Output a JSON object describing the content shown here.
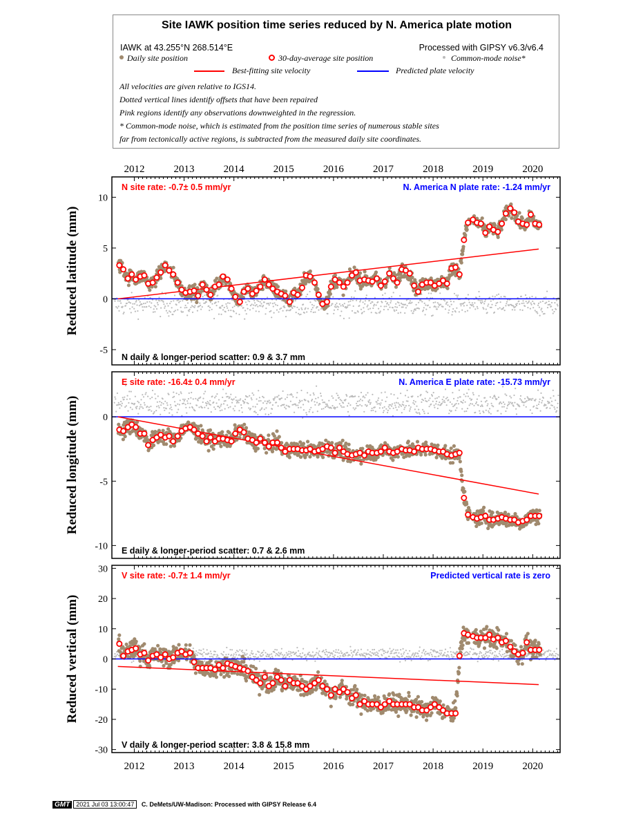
{
  "legend": {
    "title": "Site IAWK position time series reduced by N. America plate motion",
    "site_location": "IAWK at 43.255°N 268.514°E",
    "processed": "Processed with GIPSY v6.3/v6.4",
    "daily_label": "Daily site position",
    "avg_label": "30-day-average site position",
    "cm_label": "Common-mode noise*",
    "best_fit_label": "Best-fitting site velocity",
    "predicted_label": "Predicted plate velocity",
    "note1": "All velocities are given relative to IGS14.",
    "note2": "Dotted vertical lines identify offsets that have been repaired",
    "note3": "Pink regions identify any observations downweighted in the regression.",
    "note4": "* Common-mode noise, which is estimated from the position time series of numerous stable sites",
    "note5": "far from tectonically active regions, is subtracted from the measured daily site coordinates."
  },
  "colors": {
    "daily": "#a08a6e",
    "avg": "#ff0000",
    "cm": "#bbbbbb",
    "fit": "#ff0000",
    "plate": "#0000ff"
  },
  "footer": {
    "logo": "GMT",
    "timestamp": "2021 Jul 03 13:00:47",
    "credit": "C. DeMets/UW-Madison: Processed with GIPSY Release 6.4"
  },
  "chart_data": [
    {
      "type": "scatter",
      "ylabel": "Reduced latitude (mm)",
      "xticks": [
        2012,
        2013,
        2014,
        2015,
        2016,
        2017,
        2018,
        2019,
        2020
      ],
      "xlim": [
        2011.55,
        2020.55
      ],
      "ylim": [
        -6.5,
        12
      ],
      "yticks": [
        -5,
        0,
        5,
        10
      ],
      "rate_text": "N site rate:  -0.7± 0.5 mm/yr",
      "plate_text": "N. America N plate rate: -1.24 mm/yr",
      "scatter_text": "N daily & longer-period scatter:   0.9 &   3.7 mm",
      "best_fit": {
        "x": [
          2011.67,
          2020.12
        ],
        "y": [
          0.0,
          4.9
        ]
      },
      "plate": {
        "x": [
          2011.55,
          2020.55
        ],
        "y": [
          0,
          0
        ]
      },
      "offset_epoch": 2018.78,
      "avg_series": {
        "x": [
          2011.7,
          2011.78,
          2011.87,
          2011.95,
          2012.03,
          2012.12,
          2012.2,
          2012.28,
          2012.37,
          2012.45,
          2012.53,
          2012.62,
          2012.7,
          2012.78,
          2012.87,
          2012.95,
          2013.03,
          2013.12,
          2013.2,
          2013.28,
          2013.37,
          2013.45,
          2013.53,
          2013.62,
          2013.7,
          2013.78,
          2013.87,
          2013.95,
          2014.03,
          2014.12,
          2014.2,
          2014.28,
          2014.37,
          2014.45,
          2014.53,
          2014.62,
          2014.7,
          2014.78,
          2014.87,
          2014.95,
          2015.03,
          2015.12,
          2015.2,
          2015.28,
          2015.37,
          2015.45,
          2015.53,
          2015.62,
          2015.7,
          2015.78,
          2015.87,
          2015.95,
          2016.03,
          2016.12,
          2016.2,
          2016.28,
          2016.37,
          2016.45,
          2016.53,
          2016.62,
          2016.7,
          2016.78,
          2016.87,
          2016.95,
          2017.03,
          2017.12,
          2017.2,
          2017.28,
          2017.37,
          2017.45,
          2017.53,
          2017.62,
          2017.7,
          2017.78,
          2017.87,
          2017.95,
          2018.03,
          2018.12,
          2018.2,
          2018.28,
          2018.37,
          2018.45,
          2018.53,
          2018.62,
          2018.7,
          2018.8,
          2018.88,
          2018.96,
          2019.05,
          2019.13,
          2019.21,
          2019.3,
          2019.38,
          2019.46,
          2019.55,
          2019.63,
          2019.71,
          2019.8,
          2019.88,
          2019.96,
          2020.05,
          2020.13
        ],
        "y": [
          3.3,
          2.9,
          2.0,
          2.4,
          1.9,
          2.2,
          2.3,
          1.5,
          1.6,
          2.1,
          2.6,
          3.3,
          2.8,
          2.4,
          1.6,
          0.9,
          0.6,
          0.7,
          0.8,
          0.3,
          1.4,
          0.9,
          0.4,
          1.2,
          1.4,
          2.2,
          1.9,
          1.0,
          0.2,
          -0.3,
          0.7,
          1.0,
          0.5,
          0.8,
          1.2,
          1.9,
          1.4,
          1.0,
          0.7,
          0.5,
          0.3,
          -0.3,
          0.6,
          0.4,
          1.1,
          2.3,
          2.2,
          1.6,
          0.4,
          -0.5,
          -0.3,
          1.2,
          1.9,
          1.6,
          1.2,
          1.6,
          2.3,
          2.6,
          1.8,
          1.9,
          1.8,
          1.7,
          2.0,
          1.3,
          1.7,
          2.5,
          2.0,
          1.6,
          2.9,
          2.8,
          2.5,
          1.3,
          0.7,
          1.4,
          1.6,
          1.6,
          1.3,
          1.5,
          1.8,
          1.5,
          3.0,
          3.1,
          2.4,
          5.8,
          7.5,
          7.8,
          7.5,
          7.4,
          6.5,
          7.1,
          6.8,
          6.6,
          7.4,
          8.4,
          8.9,
          8.5,
          7.6,
          7.4,
          7.3,
          8.3,
          7.4,
          7.3
        ]
      }
    },
    {
      "type": "scatter",
      "ylabel": "Reduced longitude (mm)",
      "xticks": [
        2012,
        2013,
        2014,
        2015,
        2016,
        2017,
        2018,
        2019,
        2020
      ],
      "xlim": [
        2011.55,
        2020.55
      ],
      "ylim": [
        -11,
        3.5
      ],
      "yticks": [
        -10,
        -5,
        0
      ],
      "rate_text": "E site rate:  -16.4± 0.4 mm/yr",
      "plate_text": "N. America E plate rate: -15.73 mm/yr",
      "scatter_text": "E daily & longer-period scatter:   0.7 &   2.6 mm",
      "best_fit": {
        "x": [
          2011.67,
          2020.12
        ],
        "y": [
          0.0,
          -6.0
        ]
      },
      "plate": {
        "x": [
          2011.55,
          2020.55
        ],
        "y": [
          0,
          0
        ]
      },
      "offset_epoch": 2018.78,
      "avg_series": {
        "x": [
          2011.7,
          2011.78,
          2011.87,
          2011.95,
          2012.03,
          2012.12,
          2012.2,
          2012.28,
          2012.37,
          2012.45,
          2012.53,
          2012.62,
          2012.7,
          2012.78,
          2012.87,
          2012.95,
          2013.03,
          2013.12,
          2013.2,
          2013.28,
          2013.37,
          2013.45,
          2013.53,
          2013.62,
          2013.7,
          2013.78,
          2013.87,
          2013.95,
          2014.03,
          2014.12,
          2014.2,
          2014.28,
          2014.37,
          2014.45,
          2014.53,
          2014.62,
          2014.7,
          2014.78,
          2014.87,
          2014.95,
          2015.03,
          2015.12,
          2015.2,
          2015.28,
          2015.37,
          2015.45,
          2015.53,
          2015.62,
          2015.7,
          2015.78,
          2015.87,
          2015.95,
          2016.03,
          2016.12,
          2016.2,
          2016.28,
          2016.37,
          2016.45,
          2016.53,
          2016.62,
          2016.7,
          2016.78,
          2016.87,
          2016.95,
          2017.03,
          2017.12,
          2017.2,
          2017.28,
          2017.37,
          2017.45,
          2017.53,
          2017.62,
          2017.7,
          2017.78,
          2017.87,
          2017.95,
          2018.03,
          2018.12,
          2018.2,
          2018.28,
          2018.37,
          2018.45,
          2018.53,
          2018.62,
          2018.7,
          2018.8,
          2018.88,
          2018.96,
          2019.05,
          2019.13,
          2019.21,
          2019.3,
          2019.38,
          2019.46,
          2019.55,
          2019.63,
          2019.71,
          2019.8,
          2019.88,
          2019.96,
          2020.05,
          2020.13
        ],
        "y": [
          -1.0,
          -1.1,
          -0.8,
          -0.6,
          -0.8,
          -1.3,
          -1.3,
          -2.2,
          -1.8,
          -1.6,
          -1.4,
          -1.6,
          -1.5,
          -1.9,
          -1.5,
          -1.1,
          -0.9,
          -0.8,
          -1.0,
          -1.3,
          -1.5,
          -1.9,
          -1.6,
          -1.9,
          -1.7,
          -1.7,
          -1.8,
          -1.9,
          -1.3,
          -1.0,
          -1.2,
          -1.7,
          -1.8,
          -2.0,
          -1.7,
          -2.0,
          -2.3,
          -2.0,
          -2.0,
          -2.4,
          -2.7,
          -2.5,
          -2.5,
          -2.5,
          -2.6,
          -2.6,
          -2.5,
          -2.7,
          -2.6,
          -2.5,
          -2.3,
          -2.4,
          -2.8,
          -2.4,
          -2.7,
          -2.9,
          -3.0,
          -2.9,
          -2.8,
          -3.0,
          -2.7,
          -2.8,
          -2.8,
          -2.7,
          -2.4,
          -2.7,
          -2.8,
          -2.7,
          -2.5,
          -2.6,
          -2.6,
          -2.7,
          -2.4,
          -2.5,
          -2.5,
          -2.5,
          -2.6,
          -2.7,
          -2.7,
          -2.9,
          -3.0,
          -2.9,
          -2.8,
          -6.3,
          -7.6,
          -7.8,
          -7.9,
          -7.8,
          -7.7,
          -8.0,
          -8.0,
          -7.9,
          -7.8,
          -7.9,
          -8.0,
          -8.0,
          -8.2,
          -8.1,
          -8.0,
          -7.7,
          -7.7,
          -7.7
        ]
      }
    },
    {
      "type": "scatter",
      "ylabel": "Reduced vertical (mm)",
      "xticks": [
        2012,
        2013,
        2014,
        2015,
        2016,
        2017,
        2018,
        2019,
        2020
      ],
      "xlim": [
        2011.55,
        2020.55
      ],
      "ylim": [
        -31,
        31
      ],
      "yticks": [
        -30,
        -20,
        -10,
        0,
        10,
        20,
        30
      ],
      "rate_text": "V site rate:  -0.7± 1.4 mm/yr",
      "plate_text": "Predicted vertical rate is zero",
      "scatter_text": "V daily & longer-period scatter:   3.8 &   15.8 mm",
      "best_fit": {
        "x": [
          2011.67,
          2020.12
        ],
        "y": [
          -2.5,
          -8.5
        ]
      },
      "plate": {
        "x": [
          2011.55,
          2020.55
        ],
        "y": [
          0,
          0
        ]
      },
      "offset_epoch": 2018.78,
      "avg_series": {
        "x": [
          2011.7,
          2011.78,
          2011.87,
          2011.95,
          2012.03,
          2012.12,
          2012.2,
          2012.28,
          2012.37,
          2012.45,
          2012.53,
          2012.62,
          2012.7,
          2012.78,
          2012.87,
          2012.95,
          2013.03,
          2013.12,
          2013.2,
          2013.28,
          2013.37,
          2013.45,
          2013.53,
          2013.62,
          2013.7,
          2013.78,
          2013.87,
          2013.95,
          2014.03,
          2014.12,
          2014.2,
          2014.28,
          2014.37,
          2014.45,
          2014.53,
          2014.62,
          2014.7,
          2014.78,
          2014.87,
          2014.95,
          2015.03,
          2015.12,
          2015.2,
          2015.28,
          2015.37,
          2015.45,
          2015.53,
          2015.62,
          2015.7,
          2015.78,
          2015.87,
          2015.95,
          2016.03,
          2016.12,
          2016.2,
          2016.28,
          2016.37,
          2016.45,
          2016.53,
          2016.62,
          2016.7,
          2016.78,
          2016.87,
          2016.95,
          2017.03,
          2017.12,
          2017.2,
          2017.28,
          2017.37,
          2017.45,
          2017.53,
          2017.62,
          2017.7,
          2017.78,
          2017.87,
          2017.95,
          2018.03,
          2018.12,
          2018.2,
          2018.28,
          2018.37,
          2018.45,
          2018.53,
          2018.62,
          2018.7,
          2018.8,
          2018.88,
          2018.96,
          2019.05,
          2019.13,
          2019.21,
          2019.3,
          2019.38,
          2019.46,
          2019.55,
          2019.63,
          2019.71,
          2019.8,
          2019.88,
          2019.96,
          2020.05,
          2020.13
        ],
        "y": [
          5.0,
          1.0,
          2.5,
          3.0,
          3.5,
          1.5,
          2.0,
          -0.5,
          1.0,
          1.5,
          0.5,
          1.5,
          0.0,
          0.5,
          2.0,
          2.5,
          1.5,
          2.0,
          -1.0,
          -3.0,
          -3.0,
          -3.0,
          -3.0,
          -3.5,
          -2.0,
          -3.0,
          -1.5,
          -2.0,
          -2.5,
          -3.0,
          -3.5,
          -4.0,
          -6.0,
          -7.0,
          -8.0,
          -6.0,
          -9.0,
          -8.0,
          -6.0,
          -7.0,
          -9.0,
          -7.0,
          -8.0,
          -8.0,
          -9.0,
          -10.0,
          -9.0,
          -8.0,
          -7.0,
          -9.0,
          -10.0,
          -12.0,
          -10.0,
          -11.0,
          -10.0,
          -11.0,
          -13.0,
          -12.0,
          -15.0,
          -14.0,
          -15.0,
          -15.0,
          -15.0,
          -16.0,
          -15.0,
          -14.0,
          -15.0,
          -15.0,
          -15.0,
          -15.0,
          -15.0,
          -16.0,
          -16.0,
          -17.0,
          -17.0,
          -16.0,
          -15.0,
          -16.0,
          -17.0,
          -18.0,
          -18.0,
          -18.0,
          1.0,
          8.5,
          8.0,
          7.5,
          7.0,
          7.0,
          7.0,
          8.0,
          6.5,
          7.0,
          5.5,
          6.0,
          4.0,
          2.5,
          1.5,
          2.0,
          5.5,
          3.0,
          3.0,
          3.0
        ]
      }
    }
  ]
}
